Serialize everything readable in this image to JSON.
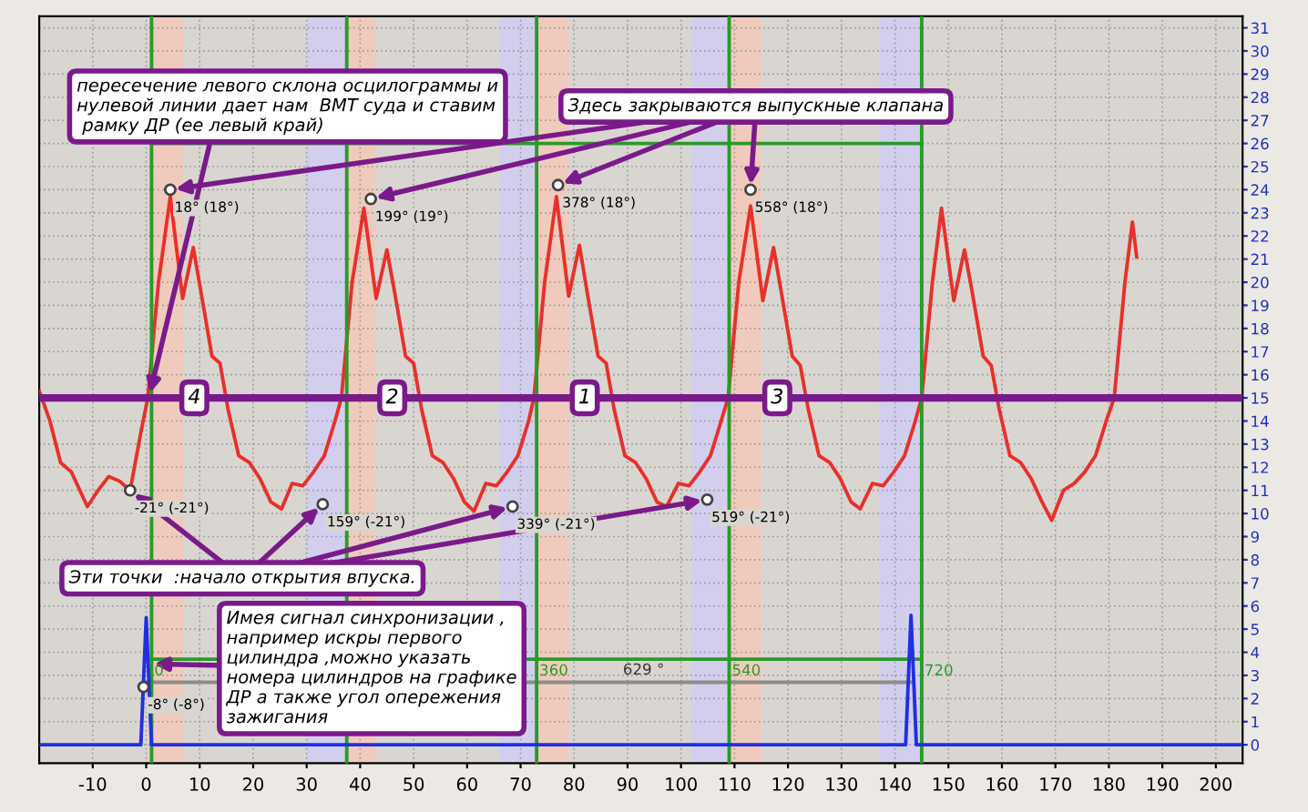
{
  "chart_data": {
    "type": "line",
    "series": [
      {
        "color": "#e8302a",
        "x": [
          -20,
          -18,
          -16,
          -14,
          -11,
          -9,
          -7,
          -5,
          -3,
          -1,
          0.3,
          2.3,
          4.5,
          6.8,
          8.8,
          10.3,
          12.3,
          13.8,
          15.3,
          17.3,
          19.3,
          21.3,
          23.3,
          25.3,
          27.3,
          29.3,
          31.3,
          33.3,
          35.3,
          36.5,
          38.5,
          40.7,
          43,
          45,
          46.5,
          48.5,
          50,
          51.5,
          53.5,
          55.5,
          57.5,
          59.5,
          61.3,
          63.5,
          65.5,
          67.5,
          69.5,
          71.5,
          72.5,
          74.5,
          76.7,
          79,
          81,
          82.5,
          84.5,
          86,
          87.5,
          89.5,
          91.5,
          93.5,
          95.5,
          97.3,
          99.5,
          101.5,
          103.5,
          105.5,
          107.5,
          108.8,
          110.8,
          113,
          115.3,
          117.3,
          118.8,
          120.8,
          122.3,
          123.8,
          125.8,
          127.8,
          129.8,
          131.8,
          133.5,
          135.8,
          137.8,
          139.8,
          141.8,
          143.8,
          145,
          147,
          148.7,
          151,
          153,
          154.5,
          156.5,
          158,
          159.5,
          161.5,
          163.5,
          165.5,
          167.5,
          169.3,
          171.5,
          173.5,
          175.5,
          177.5,
          179.5,
          181,
          183,
          184.4,
          185.2
        ],
        "values": [
          15.3,
          14.0,
          12.2,
          11.8,
          10.3,
          11.0,
          11.6,
          11.4,
          11.0,
          13.5,
          15,
          20,
          23.7,
          19.3,
          21.5,
          19.5,
          16.8,
          16.5,
          14.5,
          12.5,
          12.2,
          11.5,
          10.5,
          10.2,
          11.3,
          11.2,
          11.8,
          12.5,
          14.0,
          15,
          20,
          23.2,
          19.3,
          21.4,
          19.5,
          16.8,
          16.5,
          14.5,
          12.5,
          12.2,
          11.5,
          10.5,
          10.1,
          11.3,
          11.2,
          11.8,
          12.5,
          14.0,
          15,
          20,
          23.7,
          19.4,
          21.6,
          19.5,
          16.8,
          16.5,
          14.5,
          12.5,
          12.2,
          11.5,
          10.5,
          10.3,
          11.3,
          11.2,
          11.8,
          12.5,
          14.0,
          15,
          20,
          23.3,
          19.2,
          21.5,
          19.5,
          16.8,
          16.4,
          14.5,
          12.5,
          12.2,
          11.5,
          10.5,
          10.2,
          11.3,
          11.2,
          11.8,
          12.5,
          14.0,
          15,
          20,
          23.2,
          19.2,
          21.4,
          19.5,
          16.8,
          16.4,
          14.5,
          12.5,
          12.2,
          11.5,
          10.5,
          9.7,
          11.0,
          11.3,
          11.8,
          12.5,
          14.0,
          15,
          20,
          22.6,
          21.1
        ]
      },
      {
        "color": "#2030e0",
        "x": [
          -20,
          -1,
          0,
          1,
          142,
          143,
          144,
          205
        ],
        "values": [
          0,
          0,
          5.5,
          0,
          0,
          5.6,
          0,
          0
        ]
      },
      {
        "color": "#2a9a2a",
        "x": [
          1,
          145
        ],
        "values": [
          26,
          26
        ]
      },
      {
        "color": "#2a9a2a",
        "x": [
          1,
          145
        ],
        "values": [
          3.7,
          3.7
        ]
      },
      {
        "color": "#8c8c8c",
        "x": [
          0,
          143
        ],
        "values": [
          2.7,
          2.7
        ]
      }
    ],
    "xlim": [
      -20,
      205
    ],
    "xticks": [
      -10,
      0,
      10,
      20,
      30,
      40,
      50,
      60,
      70,
      80,
      90,
      100,
      110,
      120,
      130,
      140,
      150,
      160,
      170,
      180,
      190,
      200
    ],
    "ylim": [
      -0.8,
      31.5
    ],
    "yticks": [
      0,
      1,
      2,
      3,
      4,
      5,
      6,
      7,
      8,
      9,
      10,
      11,
      12,
      13,
      14,
      15,
      16,
      17,
      18,
      19,
      20,
      21,
      22,
      23,
      24,
      25,
      26,
      27,
      28,
      29,
      30,
      31
    ],
    "ref_lines": [
      {
        "axis": "y",
        "value": 15,
        "label": null,
        "color": "#7a1a8a"
      },
      {
        "axis": "x",
        "value": 1,
        "label": null,
        "color": "#2a9a2a"
      },
      {
        "axis": "x",
        "value": 37.5,
        "label": null,
        "color": "#2a9a2a"
      },
      {
        "axis": "x",
        "value": 73,
        "label": null,
        "color": "#2a9a2a"
      },
      {
        "axis": "x",
        "value": 109,
        "label": null,
        "color": "#2a9a2a"
      },
      {
        "axis": "x",
        "value": 145,
        "label": null,
        "color": "#2a9a2a"
      }
    ],
    "bands": [
      {
        "axis": "x",
        "from": 1,
        "to": 7,
        "label": null,
        "color": "#f5c8b8"
      },
      {
        "axis": "x",
        "from": 37.5,
        "to": 43,
        "label": null,
        "color": "#f5c8b8"
      },
      {
        "axis": "x",
        "from": 73,
        "to": 79,
        "label": null,
        "color": "#f5c8b8"
      },
      {
        "axis": "x",
        "from": 109,
        "to": 115,
        "label": null,
        "color": "#f5c8b8"
      },
      {
        "axis": "x",
        "from": 30,
        "to": 37.5,
        "label": null,
        "color": "#cfcdf5"
      },
      {
        "axis": "x",
        "from": 66,
        "to": 73,
        "label": null,
        "color": "#cfcdf5"
      },
      {
        "axis": "x",
        "from": 102,
        "to": 109,
        "label": null,
        "color": "#cfcdf5"
      },
      {
        "axis": "x",
        "from": 137,
        "to": 145,
        "label": null,
        "color": "#cfcdf5"
      }
    ],
    "annotations": [
      {
        "text": "пересечение левого склона осцилограммы и\nнулевой линии дает нам  ВМТ суда и ставим\n рамку ДР (ее левый край)",
        "x": 0.5,
        "y": 15
      },
      {
        "text": "Здесь закрываются выпускные клапана",
        "x": 4.5,
        "y": 24.0
      },
      {
        "text": "Эти точки  :начало открытия впуска.",
        "x": -3,
        "y": 11.0
      },
      {
        "text": "Имея сигнал синхронизации ,\nнапример искры первого\nцилиндра ,можно указать\nномера цилиндров на графике\nДР а также угол опережения\nзажигания",
        "x": 0.5,
        "y": 3.5
      },
      {
        "text": "18° (18°)",
        "x": 4.5,
        "y": 24.0
      },
      {
        "text": "199° (19°)",
        "x": 42,
        "y": 23.6
      },
      {
        "text": "378° (18°)",
        "x": 77,
        "y": 24.2
      },
      {
        "text": "558° (18°)",
        "x": 113,
        "y": 24.0
      },
      {
        "text": "-21° (-21°)",
        "x": -3,
        "y": 11.0
      },
      {
        "text": "159° (-21°)",
        "x": 33,
        "y": 10.4
      },
      {
        "text": "339° (-21°)",
        "x": 68.5,
        "y": 10.3
      },
      {
        "text": "519° (-21°)",
        "x": 104.9,
        "y": 10.6
      },
      {
        "text": "-8° (-8°)",
        "x": -0.5,
        "y": 2.5
      },
      {
        "text": "4",
        "x": 9,
        "y": 15
      },
      {
        "text": "2",
        "x": 46,
        "y": 15
      },
      {
        "text": "1",
        "x": 82,
        "y": 15
      },
      {
        "text": "3",
        "x": 118,
        "y": 15
      },
      {
        "text": "0",
        "x": 1,
        "y": 3.7
      },
      {
        "text": "360",
        "x": 73,
        "y": 3.7
      },
      {
        "text": "540",
        "x": 109,
        "y": 3.7
      },
      {
        "text": "720",
        "x": 145,
        "y": 3.7
      },
      {
        "text": "629 °",
        "x": 93,
        "y": 2.7
      }
    ],
    "grid": true,
    "legend": false
  }
}
